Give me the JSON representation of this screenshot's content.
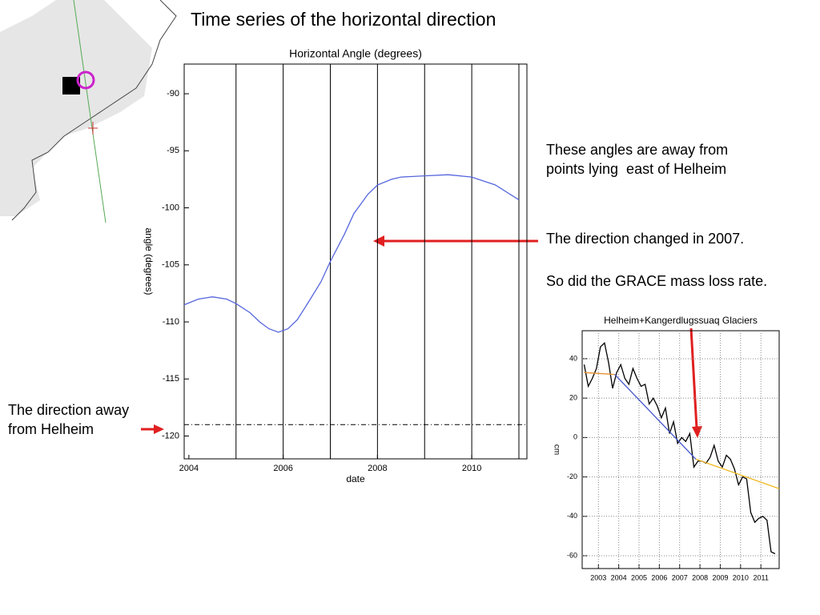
{
  "title": "Time series of the horizontal direction",
  "notes": [
    "These angles are away from\npoints lying  east of Helheim",
    "The direction changed in 2007.",
    "So did the GRACE mass loss rate.",
    "The direction away\nfrom Helheim"
  ],
  "chart_data": [
    {
      "type": "line",
      "title": "Horizontal Angle (degrees)",
      "x_label": "date",
      "y_label": "angle (degrees)",
      "xlim": [
        2003.9,
        2011.17
      ],
      "xticks": [
        2004,
        2006,
        2008,
        2010
      ],
      "xgrid": [
        2005,
        2006,
        2007,
        2008,
        2009,
        2010,
        2011
      ],
      "ylim": [
        -122,
        -87.4
      ],
      "yticks": [
        -90,
        -95,
        -100,
        -105,
        -110,
        -115,
        -120
      ],
      "hline": -119,
      "series": [
        {
          "color": "#5566dd",
          "x": [
            2003.9,
            2004.2,
            2004.5,
            2004.8,
            2005.0,
            2005.3,
            2005.5,
            2005.7,
            2005.9,
            2006.1,
            2006.3,
            2006.5,
            2006.8,
            2007.0,
            2007.3,
            2007.5,
            2007.8,
            2008.0,
            2008.3,
            2008.5,
            2009.0,
            2009.5,
            2010.0,
            2010.5,
            2011.0
          ],
          "values": [
            -108.5,
            -108.0,
            -107.8,
            -108.0,
            -108.4,
            -109.2,
            -110.0,
            -110.6,
            -110.9,
            -110.6,
            -109.8,
            -108.5,
            -106.5,
            -104.7,
            -102.3,
            -100.5,
            -98.8,
            -98.0,
            -97.5,
            -97.3,
            -97.2,
            -97.1,
            -97.3,
            -98.0,
            -99.3
          ]
        }
      ]
    },
    {
      "type": "line",
      "title": "Helheim+Kangerdlugssuaq Glaciers",
      "y_label": "cm",
      "xlim": [
        2002.2,
        2011.9
      ],
      "xticks": [
        2003,
        2004,
        2005,
        2006,
        2007,
        2008,
        2009,
        2010,
        2011
      ],
      "ylim": [
        -66.5,
        54.2
      ],
      "yticks": [
        40,
        20,
        0,
        -20,
        -40,
        -60
      ],
      "grid": true,
      "series": [
        {
          "color": "#000000",
          "x": [
            2002.3,
            2002.5,
            2002.7,
            2002.9,
            2003.1,
            2003.3,
            2003.5,
            2003.7,
            2003.9,
            2004.1,
            2004.3,
            2004.5,
            2004.7,
            2004.9,
            2005.1,
            2005.3,
            2005.5,
            2005.7,
            2005.9,
            2006.1,
            2006.3,
            2006.5,
            2006.7,
            2006.9,
            2007.1,
            2007.3,
            2007.5,
            2007.7,
            2007.9,
            2008.1,
            2008.3,
            2008.5,
            2008.7,
            2008.9,
            2009.1,
            2009.3,
            2009.5,
            2009.7,
            2009.9,
            2010.1,
            2010.3,
            2010.5,
            2010.7,
            2010.9,
            2011.1,
            2011.3,
            2011.5,
            2011.7
          ],
          "values": [
            37,
            26,
            30,
            35,
            46,
            48,
            38,
            25,
            33,
            37,
            30,
            27,
            35,
            30,
            26,
            27,
            17,
            20,
            16,
            10,
            15,
            2,
            8,
            -3,
            0,
            -2,
            2,
            -15,
            -12,
            -12,
            -13,
            -10,
            -4,
            -12,
            -15,
            -9,
            -11,
            -16,
            -24,
            -20,
            -21,
            -38,
            -43,
            -41,
            -40,
            -42,
            -58,
            -59
          ]
        },
        {
          "color": "#e8912a",
          "x": [
            2002.3,
            2003.8
          ],
          "values": [
            33,
            32
          ]
        },
        {
          "color": "#4455cc",
          "x": [
            2003.8,
            2007.8
          ],
          "values": [
            32,
            -11
          ]
        },
        {
          "color": "#f0b820",
          "x": [
            2007.8,
            2011.9
          ],
          "values": [
            -11,
            -26
          ]
        }
      ]
    }
  ]
}
